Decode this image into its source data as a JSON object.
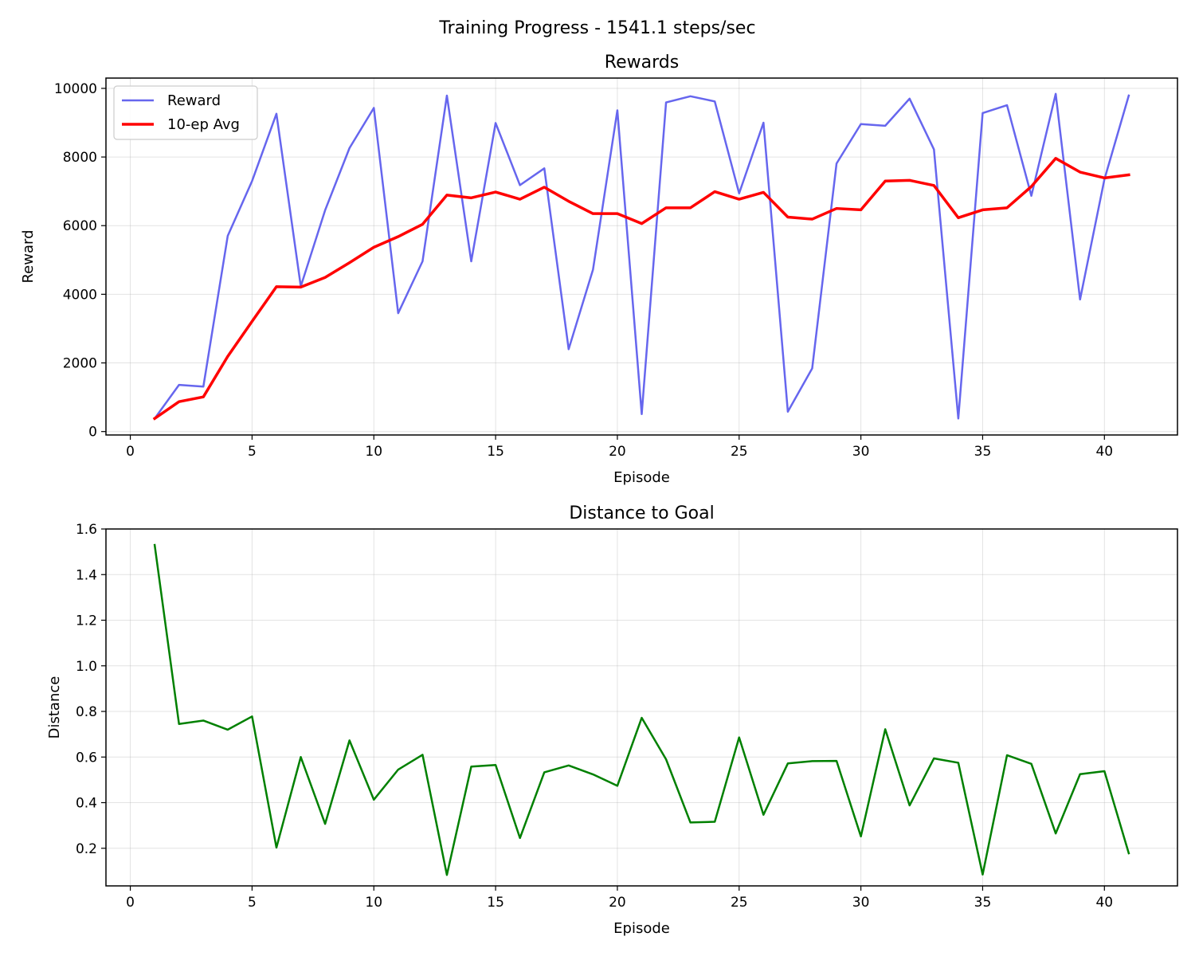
{
  "figure": {
    "suptitle": "Training Progress - 1541.1 steps/sec"
  },
  "chart_data": [
    {
      "type": "line",
      "title": "Rewards",
      "xlabel": "Episode",
      "ylabel": "Reward",
      "xlim": [
        -1,
        43
      ],
      "ylim": [
        -100,
        10300
      ],
      "xticks": [
        0,
        5,
        10,
        15,
        20,
        25,
        30,
        35,
        40
      ],
      "yticks": [
        0,
        2000,
        4000,
        6000,
        8000,
        10000
      ],
      "ytick_decimals": 0,
      "grid": true,
      "legend": "top-left",
      "x": [
        1,
        2,
        3,
        4,
        5,
        6,
        7,
        8,
        9,
        10,
        11,
        12,
        13,
        14,
        15,
        16,
        17,
        18,
        19,
        20,
        21,
        22,
        23,
        24,
        25,
        26,
        27,
        28,
        29,
        30,
        31,
        32,
        33,
        34,
        35,
        36,
        37,
        38,
        39,
        40,
        41
      ],
      "series": [
        {
          "name": "Reward",
          "color": "#6666ee",
          "width": 2.5,
          "values": [
            380,
            1360,
            1310,
            5700,
            7300,
            9260,
            4230,
            6450,
            8260,
            9430,
            3450,
            4960,
            9790,
            4960,
            8990,
            7180,
            7670,
            2400,
            4720,
            9360,
            510,
            9590,
            9770,
            9620,
            6940,
            9000,
            580,
            1840,
            7810,
            8960,
            8910,
            9700,
            8220,
            380,
            9280,
            9510,
            6870,
            9840,
            3850,
            7350,
            9790
          ]
        },
        {
          "name": "10-ep Avg",
          "color": "#ff0000",
          "width": 3.5,
          "values": [
            380,
            870,
            1010,
            2190,
            3210,
            4220,
            4210,
            4490,
            4920,
            5370,
            5680,
            6040,
            6890,
            6810,
            6980,
            6770,
            7120,
            6710,
            6350,
            6350,
            6060,
            6520,
            6520,
            6990,
            6770,
            6970,
            6250,
            6190,
            6500,
            6460,
            7300,
            7320,
            7170,
            6230,
            6460,
            6520,
            7140,
            7960,
            7560,
            7390,
            7480
          ]
        }
      ]
    },
    {
      "type": "line",
      "title": "Distance to Goal",
      "xlabel": "Episode",
      "ylabel": "Distance",
      "xlim": [
        -1,
        43
      ],
      "ylim": [
        0.035,
        1.6
      ],
      "xticks": [
        0,
        5,
        10,
        15,
        20,
        25,
        30,
        35,
        40
      ],
      "yticks": [
        0.2,
        0.4,
        0.6,
        0.8,
        1.0,
        1.2,
        1.4,
        1.6
      ],
      "ytick_decimals": 1,
      "grid": true,
      "x": [
        1,
        2,
        3,
        4,
        5,
        6,
        7,
        8,
        9,
        10,
        11,
        12,
        13,
        14,
        15,
        16,
        17,
        18,
        19,
        20,
        21,
        22,
        23,
        24,
        25,
        26,
        27,
        28,
        29,
        30,
        31,
        32,
        33,
        34,
        35,
        36,
        37,
        38,
        39,
        40,
        41
      ],
      "series": [
        {
          "color": "#008000",
          "width": 2.5,
          "values": [
            1.53,
            0.745,
            0.76,
            0.72,
            0.778,
            0.203,
            0.6,
            0.307,
            0.673,
            0.413,
            0.545,
            0.61,
            0.083,
            0.558,
            0.565,
            0.245,
            0.533,
            0.563,
            0.524,
            0.474,
            0.772,
            0.59,
            0.313,
            0.316,
            0.686,
            0.347,
            0.572,
            0.582,
            0.583,
            0.252,
            0.722,
            0.388,
            0.594,
            0.575,
            0.085,
            0.608,
            0.57,
            0.265,
            0.525,
            0.538,
            0.178
          ]
        }
      ]
    }
  ]
}
